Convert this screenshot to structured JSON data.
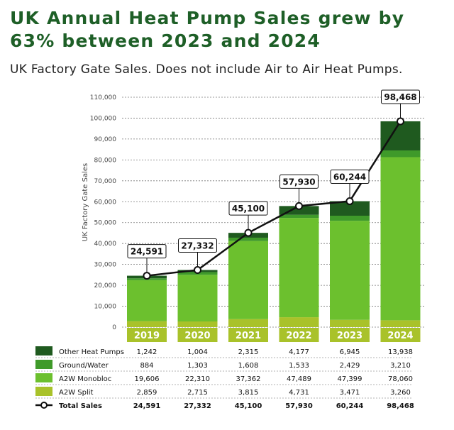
{
  "header": {
    "title": "UK Annual Heat Pump Sales grew by 63% between 2023 and 2024",
    "subtitle": "UK Factory Gate Sales. Does not include Air to Air Heat Pumps."
  },
  "chart_data": {
    "type": "bar",
    "stacked": true,
    "ylabel": "UK Factory Gate Sales",
    "ylim": [
      0,
      110000
    ],
    "yticks": [
      "0",
      "10,000",
      "20,000",
      "30,000",
      "40,000",
      "50,000",
      "60,000",
      "70,000",
      "80,000",
      "90,000",
      "100,000",
      "110,000"
    ],
    "categories": [
      "2019",
      "2020",
      "2021",
      "2022",
      "2023",
      "2024"
    ],
    "series": [
      {
        "name": "Other Heat Pumps",
        "color": "#1f5a1f",
        "values": [
          1242,
          1004,
          2315,
          4177,
          6945,
          13938
        ],
        "labels": [
          "1,242",
          "1,004",
          "2,315",
          "4,177",
          "6,945",
          "13,938"
        ]
      },
      {
        "name": "Ground/Water",
        "color": "#3f9a2a",
        "values": [
          884,
          1303,
          1608,
          1533,
          2429,
          3210
        ],
        "labels": [
          "884",
          "1,303",
          "1,608",
          "1,533",
          "2,429",
          "3,210"
        ]
      },
      {
        "name": "A2W Monobloc",
        "color": "#6cc02e",
        "values": [
          19606,
          22310,
          37362,
          47489,
          47399,
          78060
        ],
        "labels": [
          "19,606",
          "22,310",
          "37,362",
          "47,489",
          "47,399",
          "78,060"
        ]
      },
      {
        "name": "A2W Split",
        "color": "#a9c22a",
        "values": [
          2859,
          2715,
          3815,
          4731,
          3471,
          3260
        ],
        "labels": [
          "2,859",
          "2,715",
          "3,815",
          "4,731",
          "3,471",
          "3,260"
        ]
      }
    ],
    "stack_order": [
      "A2W Split",
      "A2W Monobloc",
      "Ground/Water",
      "Other Heat Pumps"
    ],
    "line": {
      "name": "Total Sales",
      "color": "#111111",
      "values": [
        24591,
        27332,
        45100,
        57930,
        60244,
        98468
      ],
      "labels": [
        "24,591",
        "27,332",
        "45,100",
        "57,930",
        "60,244",
        "98,468"
      ]
    }
  }
}
